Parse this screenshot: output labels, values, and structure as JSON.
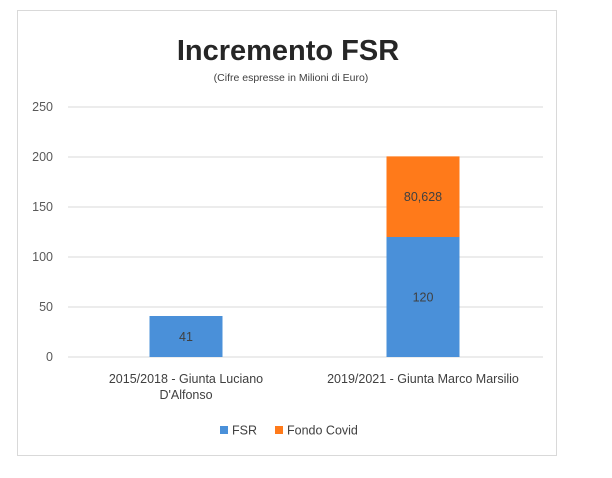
{
  "chart_data": {
    "type": "bar",
    "stacked": true,
    "title": "Incremento FSR",
    "subtitle": "(Cifre espresse in Milioni di Euro)",
    "categories": [
      [
        "2015/2018 - Giunta Luciano",
        "D'Alfonso"
      ],
      [
        "2019/2021 - Giunta Marco Marsilio"
      ]
    ],
    "series": [
      {
        "name": "FSR",
        "color": "#4a90d9",
        "values": [
          41,
          120
        ],
        "labels": [
          "41",
          "120"
        ]
      },
      {
        "name": "Fondo Covid",
        "color": "#ff7a1a",
        "values": [
          null,
          80.628
        ],
        "labels": [
          "",
          "80,628"
        ]
      }
    ],
    "ylim": [
      0,
      250
    ],
    "yticks": [
      0,
      50,
      100,
      150,
      200,
      250
    ],
    "grid": true,
    "legend_position": "bottom"
  }
}
